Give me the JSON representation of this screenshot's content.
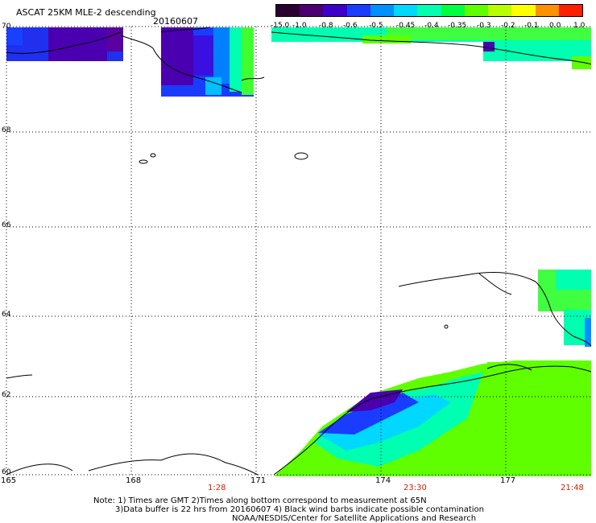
{
  "header": {
    "title": "ASCAT 25KM MLE-2 descending",
    "date": "20160607"
  },
  "colorbar": {
    "labels": [
      "-15.0",
      "-1.0",
      "-0.8",
      "-0.6",
      "-0.5",
      "-0.45",
      "-0.4",
      "-0.35",
      "-0.3",
      "-0.2",
      "-0.1",
      "0.0",
      "1.0"
    ],
    "colors": [
      "#2a0030",
      "#4a0070",
      "#3c00c8",
      "#1a3cff",
      "#0090ff",
      "#00d8ff",
      "#00ffb0",
      "#00ff40",
      "#60ff00",
      "#b8ff00",
      "#ffff00",
      "#ff9000",
      "#ff2000"
    ]
  },
  "map": {
    "lat_ticks": [
      "70",
      "68",
      "66",
      "64",
      "62",
      "60"
    ],
    "lon_ticks": [
      "165",
      "168",
      "171",
      "174",
      "177"
    ],
    "time_labels": [
      "1:28",
      "23:30",
      "21:48"
    ]
  },
  "notes": {
    "line1": "Note: 1) Times are GMT 2)Times along bottom correspond to measurement at 65N",
    "line2": "3)Data buffer is 22 hrs from 20160607 4) Black wind barbs indicate possible contamination",
    "line3": "NOAA/NESDIS/Center for Satellite Applications and Research"
  }
}
